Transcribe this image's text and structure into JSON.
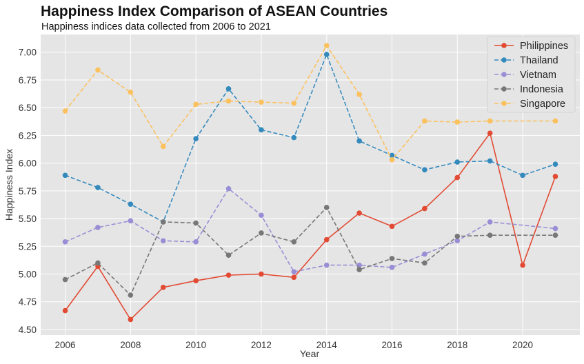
{
  "chart_data": {
    "type": "line",
    "title": "Happiness Index Comparison of ASEAN Countries",
    "subtitle": "Happiness indices data collected from 2006 to 2021",
    "xlabel": "Year",
    "ylabel": "Happiness Index",
    "xlim": [
      2005.25,
      2021.75
    ],
    "ylim": [
      4.45,
      7.16
    ],
    "xticks": [
      2006,
      2008,
      2010,
      2012,
      2014,
      2016,
      2018,
      2020
    ],
    "yticks": [
      4.5,
      4.75,
      5.0,
      5.25,
      5.5,
      5.75,
      6.0,
      6.25,
      6.5,
      6.75,
      7.0
    ],
    "grid": true,
    "legend_position": "top-right",
    "series": [
      {
        "name": "Philippines",
        "color": "#E24A33",
        "dash": "solid",
        "x": [
          2006,
          2007,
          2008,
          2009,
          2010,
          2011,
          2012,
          2013,
          2014,
          2015,
          2016,
          2017,
          2018,
          2019,
          2020,
          2021
        ],
        "values": [
          4.67,
          5.07,
          4.59,
          4.88,
          4.94,
          4.99,
          5.0,
          4.97,
          5.31,
          5.55,
          5.43,
          5.59,
          5.87,
          6.27,
          5.08,
          5.88
        ]
      },
      {
        "name": "Thailand",
        "color": "#348ABD",
        "dash": "dashed",
        "x": [
          2006,
          2007,
          2008,
          2009,
          2010,
          2011,
          2012,
          2013,
          2014,
          2015,
          2016,
          2017,
          2018,
          2019,
          2020,
          2021
        ],
        "values": [
          5.89,
          5.78,
          5.63,
          5.47,
          6.22,
          6.67,
          6.3,
          6.23,
          6.98,
          6.2,
          6.07,
          5.94,
          6.01,
          6.02,
          5.89,
          5.99
        ]
      },
      {
        "name": "Vietnam",
        "color": "#988ED5",
        "dash": "dashed",
        "x": [
          2006,
          2007,
          2008,
          2009,
          2010,
          2011,
          2012,
          2013,
          2014,
          2015,
          2016,
          2017,
          2018,
          2019,
          2021
        ],
        "values": [
          5.29,
          5.42,
          5.48,
          5.3,
          5.29,
          5.77,
          5.53,
          5.02,
          5.08,
          5.08,
          5.06,
          5.18,
          5.3,
          5.47,
          5.41
        ]
      },
      {
        "name": "Indonesia",
        "color": "#777777",
        "dash": "dashed",
        "x": [
          2006,
          2007,
          2008,
          2009,
          2010,
          2011,
          2012,
          2013,
          2014,
          2015,
          2016,
          2017,
          2018,
          2019,
          2021
        ],
        "values": [
          4.95,
          5.1,
          4.81,
          5.47,
          5.46,
          5.17,
          5.37,
          5.29,
          5.6,
          5.04,
          5.14,
          5.1,
          5.34,
          5.35,
          5.35
        ]
      },
      {
        "name": "Singapore",
        "color": "#FBC15E",
        "dash": "dashed",
        "x": [
          2006,
          2007,
          2008,
          2009,
          2010,
          2011,
          2012,
          2013,
          2014,
          2015,
          2016,
          2017,
          2018,
          2019,
          2021
        ],
        "values": [
          6.47,
          6.84,
          6.64,
          6.15,
          6.53,
          6.56,
          6.55,
          6.54,
          7.06,
          6.62,
          6.03,
          6.38,
          6.37,
          6.38,
          6.38
        ]
      }
    ]
  }
}
